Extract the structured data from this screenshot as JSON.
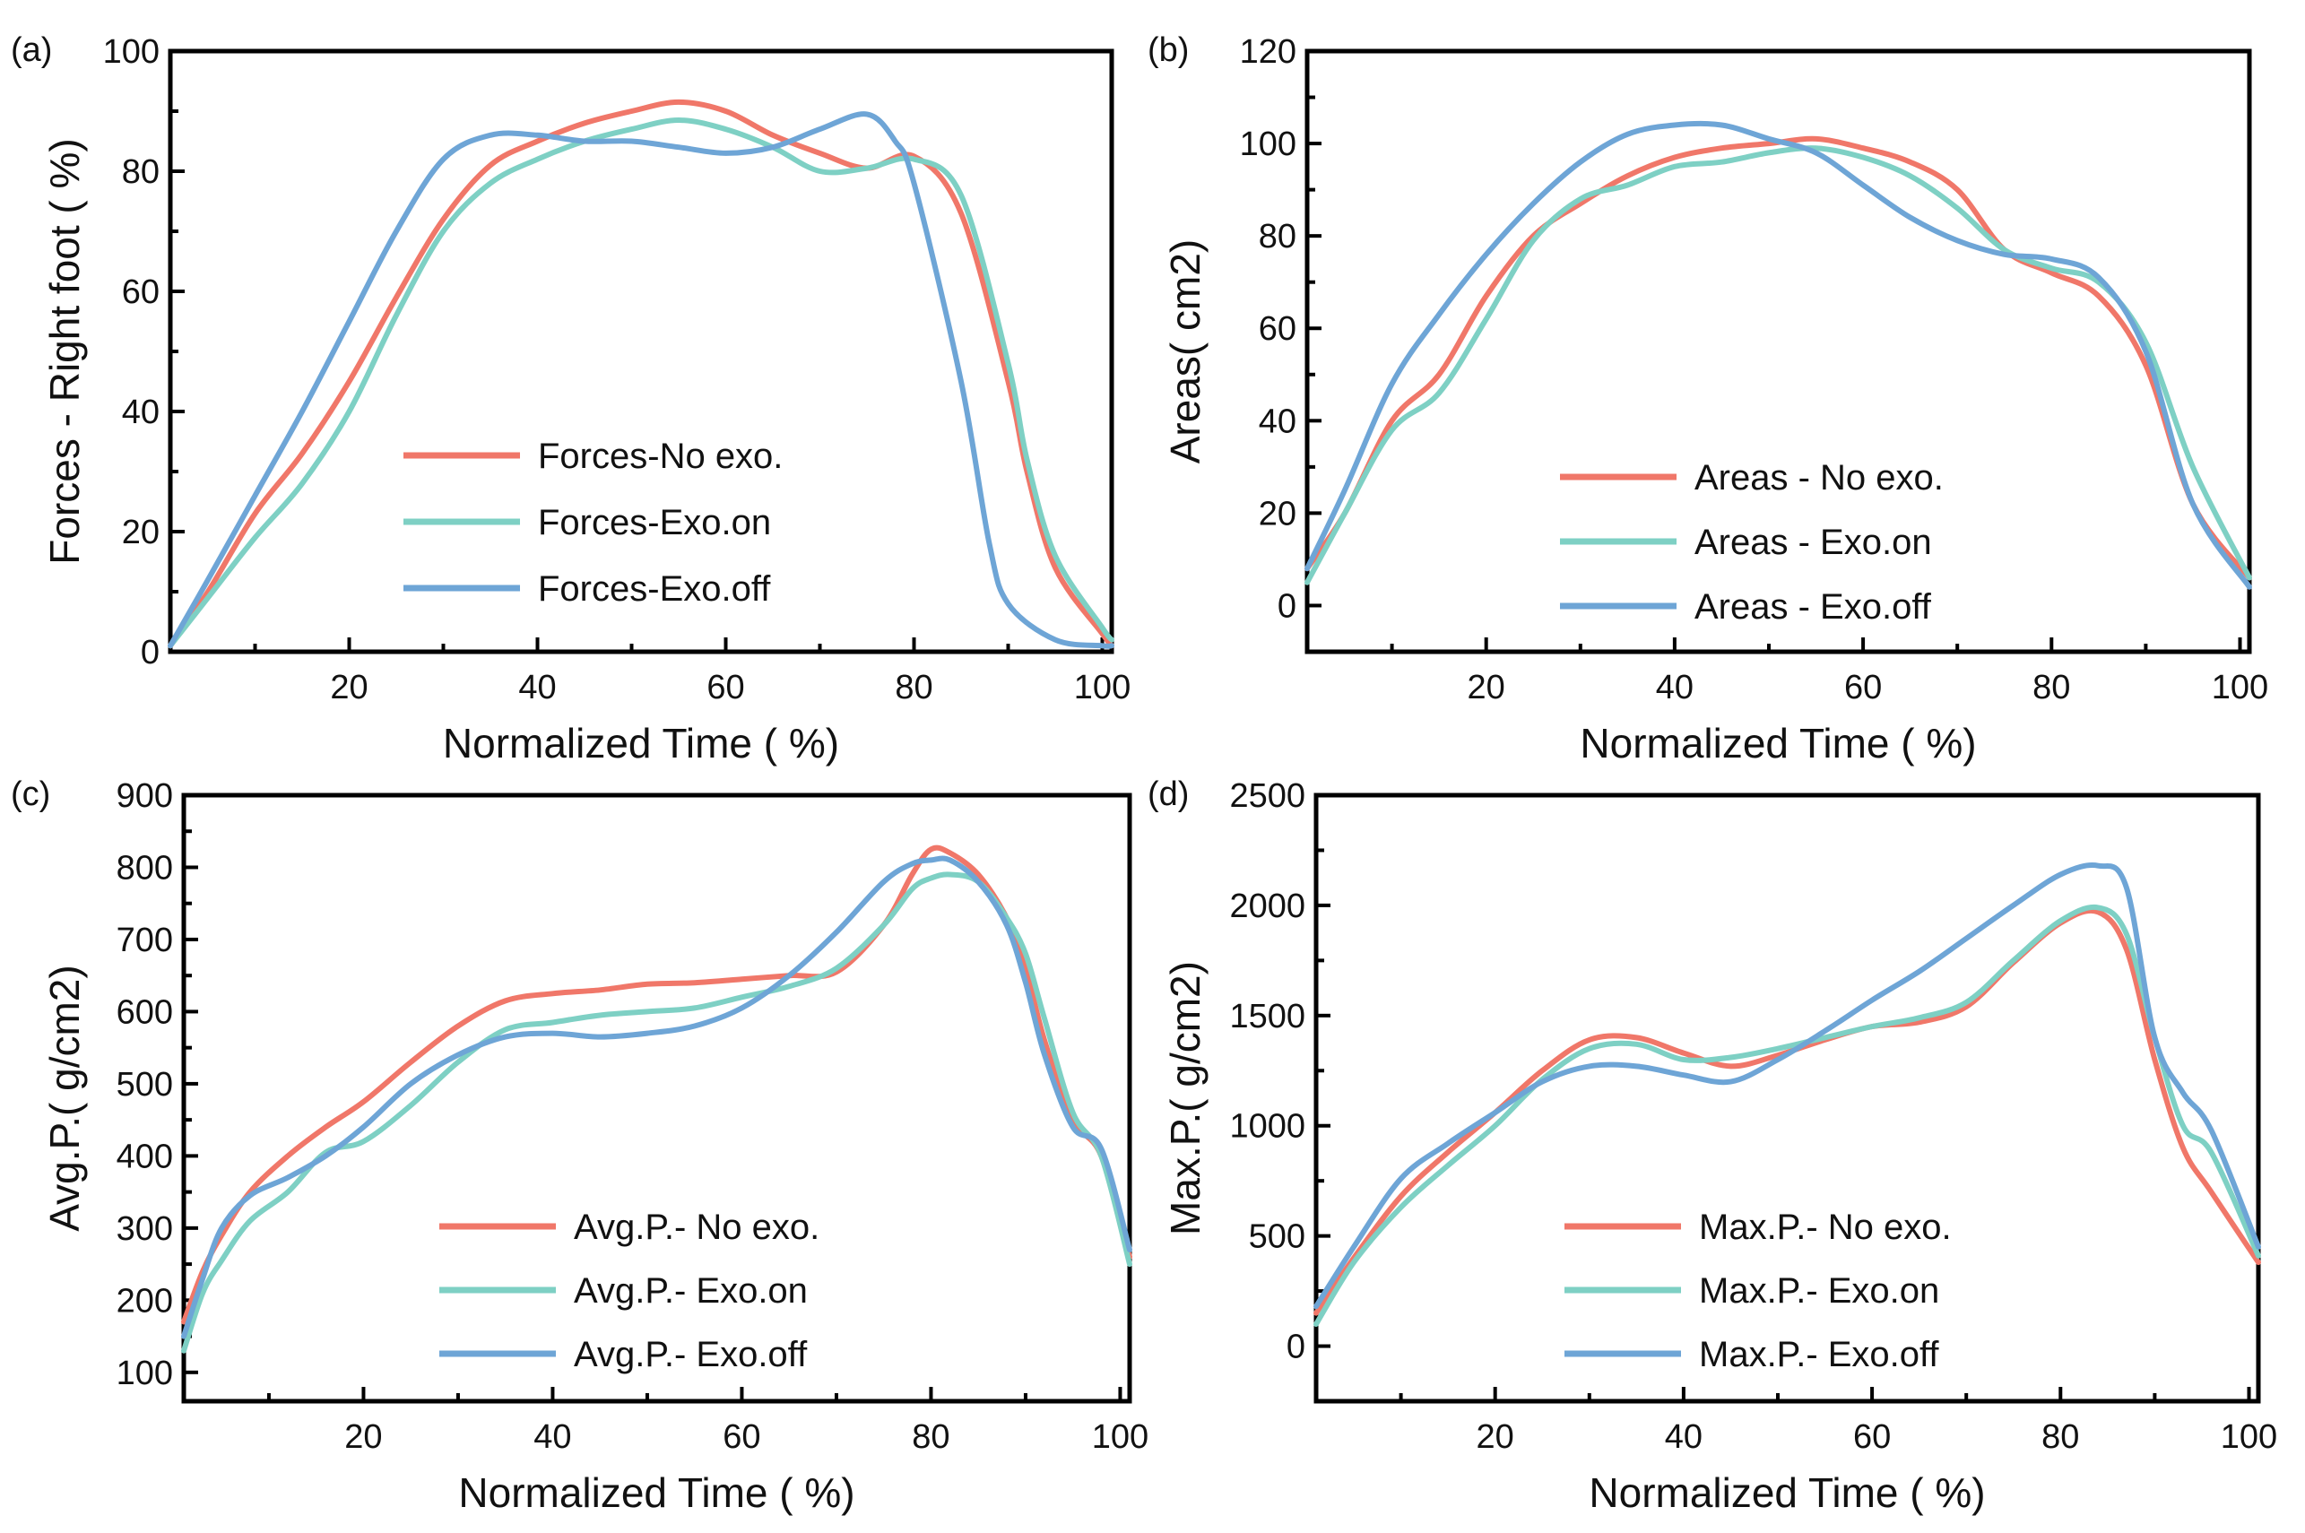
{
  "chart_data": [
    {
      "panel_label": "(a)",
      "type": "line",
      "xlabel": "Normalized Time (   %)",
      "ylabel": "Forces - Right foot (   %)",
      "xlim": [
        1,
        101
      ],
      "ylim": [
        0,
        100
      ],
      "xticks": [
        20,
        40,
        60,
        80,
        100
      ],
      "yticks": [
        0,
        20,
        40,
        60,
        80,
        100
      ],
      "legend_position": "center-left",
      "series": [
        {
          "name": "Forces-No exo.",
          "color": "#F07769",
          "x": [
            1,
            5,
            10,
            15,
            20,
            25,
            30,
            35,
            40,
            45,
            50,
            55,
            60,
            65,
            70,
            75,
            80,
            85,
            90,
            92,
            95,
            100,
            101
          ],
          "y": [
            1,
            10,
            23,
            33,
            45,
            59,
            72,
            81,
            85,
            88,
            90,
            91.5,
            90,
            86,
            83,
            80.5,
            82.5,
            73,
            45,
            30,
            14,
            3,
            1
          ]
        },
        {
          "name": "Forces-Exo.on",
          "color": "#7ED0C4",
          "x": [
            1,
            5,
            10,
            15,
            20,
            25,
            30,
            35,
            40,
            45,
            50,
            55,
            60,
            65,
            70,
            75,
            80,
            85,
            90,
            92,
            95,
            100,
            101
          ],
          "y": [
            1,
            9,
            19,
            28,
            40,
            56,
            70,
            78,
            82,
            85,
            87,
            88.5,
            87,
            84,
            80,
            80.5,
            82,
            76,
            48,
            32,
            16,
            4,
            2
          ]
        },
        {
          "name": "Forces-Exo.off",
          "color": "#6EA5D6",
          "x": [
            1,
            5,
            10,
            15,
            20,
            25,
            30,
            35,
            40,
            45,
            50,
            55,
            60,
            65,
            70,
            75,
            78,
            80,
            85,
            88,
            90,
            95,
            100,
            101
          ],
          "y": [
            1,
            12,
            26,
            40,
            55,
            70,
            82,
            86,
            86,
            85,
            85,
            84,
            83,
            84,
            87,
            89.5,
            85,
            78,
            45,
            18,
            8,
            2,
            1,
            1
          ]
        }
      ]
    },
    {
      "panel_label": "(b)",
      "type": "line",
      "xlabel": "Normalized Time (   %)",
      "ylabel": "Areas(   cm2)",
      "xlim": [
        1,
        101
      ],
      "ylim": [
        -10,
        120
      ],
      "xticks": [
        20,
        40,
        60,
        80,
        100
      ],
      "yticks": [
        0,
        20,
        40,
        60,
        80,
        100,
        120
      ],
      "legend_position": "bottom-center",
      "series": [
        {
          "name": "Areas - No exo.",
          "color": "#F07769",
          "x": [
            1,
            5,
            10,
            15,
            20,
            25,
            30,
            35,
            40,
            45,
            50,
            55,
            60,
            65,
            70,
            75,
            80,
            85,
            90,
            95,
            101
          ],
          "y": [
            8,
            20,
            40,
            50,
            67,
            80,
            87,
            93,
            97,
            99,
            100,
            101,
            99,
            96,
            90,
            77,
            72,
            67,
            52,
            22,
            6
          ]
        },
        {
          "name": "Areas - Exo.on",
          "color": "#7ED0C4",
          "x": [
            1,
            5,
            10,
            15,
            20,
            25,
            30,
            35,
            40,
            45,
            50,
            55,
            60,
            65,
            70,
            75,
            80,
            85,
            90,
            95,
            101
          ],
          "y": [
            5,
            20,
            38,
            46,
            62,
            79,
            88,
            91,
            95,
            96,
            98,
            99,
            97,
            93,
            86,
            77,
            73,
            70,
            57,
            30,
            6
          ]
        },
        {
          "name": "Areas - Exo.off",
          "color": "#6EA5D6",
          "x": [
            1,
            5,
            10,
            15,
            20,
            25,
            30,
            35,
            40,
            45,
            50,
            55,
            60,
            65,
            70,
            75,
            80,
            85,
            90,
            95,
            101
          ],
          "y": [
            8,
            25,
            48,
            63,
            76,
            87,
            96,
            102,
            104,
            104,
            101,
            98,
            91,
            84,
            79,
            76,
            75,
            71,
            55,
            22,
            4
          ]
        }
      ]
    },
    {
      "panel_label": "(c)",
      "type": "line",
      "xlabel": "Normalized Time (   %)",
      "ylabel": "Avg.P.(   g/cm2)",
      "xlim": [
        1,
        101
      ],
      "ylim": [
        60,
        900
      ],
      "xticks": [
        20,
        40,
        60,
        80,
        100
      ],
      "yticks": [
        100,
        200,
        300,
        400,
        500,
        600,
        700,
        800,
        900
      ],
      "legend_position": "bottom-center",
      "series": [
        {
          "name": "Avg.P.- No exo.",
          "color": "#F07769",
          "x": [
            1,
            3,
            5,
            8,
            12,
            16,
            20,
            25,
            30,
            35,
            40,
            45,
            50,
            55,
            60,
            65,
            70,
            75,
            78,
            80,
            82,
            85,
            88,
            90,
            92,
            95,
            98,
            101
          ],
          "y": [
            170,
            240,
            290,
            350,
            400,
            440,
            475,
            530,
            580,
            615,
            625,
            630,
            638,
            640,
            645,
            650,
            655,
            720,
            790,
            825,
            820,
            790,
            730,
            660,
            560,
            450,
            400,
            260
          ]
        },
        {
          "name": "Avg.P.- Exo.on",
          "color": "#7ED0C4",
          "x": [
            1,
            3,
            5,
            8,
            12,
            16,
            20,
            25,
            30,
            35,
            40,
            45,
            50,
            55,
            60,
            65,
            70,
            75,
            78,
            80,
            82,
            85,
            88,
            90,
            92,
            95,
            98,
            101
          ],
          "y": [
            130,
            210,
            255,
            310,
            350,
            405,
            420,
            470,
            530,
            575,
            585,
            595,
            600,
            605,
            620,
            635,
            660,
            720,
            770,
            785,
            790,
            780,
            730,
            680,
            590,
            460,
            400,
            250
          ]
        },
        {
          "name": "Avg.P.- Exo.off",
          "color": "#6EA5D6",
          "x": [
            1,
            3,
            5,
            8,
            12,
            16,
            20,
            25,
            30,
            35,
            40,
            45,
            50,
            55,
            60,
            65,
            70,
            75,
            78,
            80,
            82,
            85,
            88,
            90,
            92,
            95,
            98,
            101
          ],
          "y": [
            150,
            230,
            300,
            345,
            370,
            400,
            440,
            500,
            540,
            565,
            570,
            565,
            570,
            580,
            605,
            650,
            710,
            780,
            805,
            810,
            810,
            780,
            720,
            640,
            540,
            440,
            410,
            270
          ]
        }
      ]
    },
    {
      "panel_label": "(d)",
      "type": "line",
      "xlabel": "Normalized Time (   %)",
      "ylabel": "Max.P.(   g/cm2)",
      "xlim": [
        1,
        101
      ],
      "ylim": [
        -250,
        2500
      ],
      "xticks": [
        20,
        40,
        60,
        80,
        100
      ],
      "yticks": [
        0,
        500,
        1000,
        1500,
        2000,
        2500
      ],
      "legend_position": "bottom-center",
      "series": [
        {
          "name": "Max.P.- No exo.",
          "color": "#F07769",
          "x": [
            1,
            5,
            10,
            15,
            20,
            25,
            30,
            35,
            40,
            45,
            50,
            55,
            60,
            65,
            70,
            75,
            80,
            84,
            87,
            90,
            93,
            96,
            101
          ],
          "y": [
            150,
            400,
            680,
            880,
            1060,
            1250,
            1390,
            1400,
            1330,
            1270,
            1320,
            1390,
            1450,
            1470,
            1540,
            1740,
            1920,
            1970,
            1800,
            1300,
            900,
            700,
            380
          ]
        },
        {
          "name": "Max.P.- Exo.on",
          "color": "#7ED0C4",
          "x": [
            1,
            5,
            10,
            15,
            20,
            25,
            30,
            35,
            40,
            45,
            50,
            55,
            60,
            65,
            70,
            75,
            80,
            84,
            87,
            90,
            93,
            96,
            101
          ],
          "y": [
            100,
            380,
            630,
            820,
            1000,
            1210,
            1350,
            1370,
            1300,
            1310,
            1350,
            1400,
            1450,
            1490,
            1560,
            1750,
            1930,
            1990,
            1870,
            1400,
            1000,
            880,
            410
          ]
        },
        {
          "name": "Max.P.- Exo.off",
          "color": "#6EA5D6",
          "x": [
            1,
            5,
            10,
            15,
            20,
            25,
            30,
            35,
            40,
            45,
            50,
            55,
            60,
            65,
            70,
            75,
            80,
            84,
            87,
            90,
            93,
            96,
            101
          ],
          "y": [
            180,
            450,
            760,
            920,
            1060,
            1200,
            1270,
            1270,
            1230,
            1200,
            1300,
            1430,
            1570,
            1700,
            1850,
            2000,
            2140,
            2180,
            2080,
            1400,
            1150,
            980,
            450
          ]
        }
      ]
    }
  ]
}
